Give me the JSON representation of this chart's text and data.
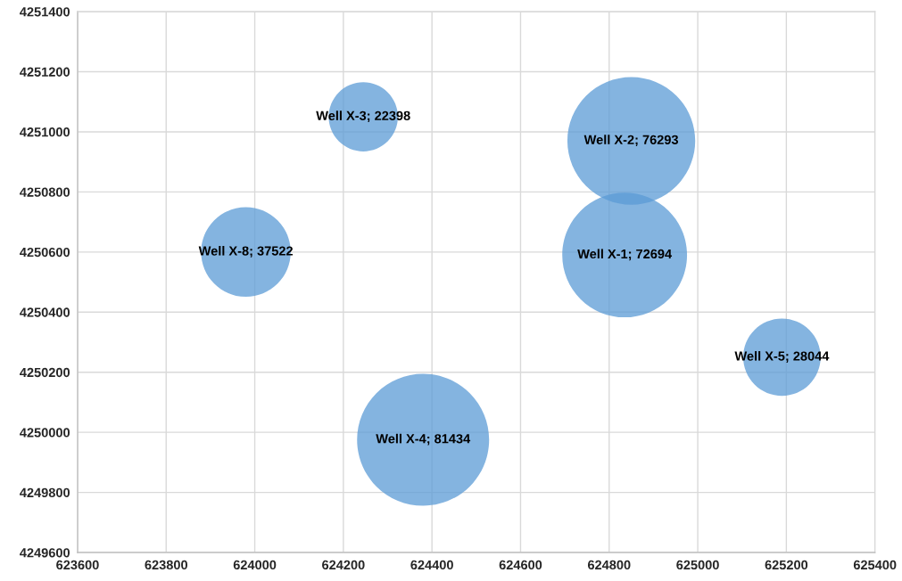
{
  "chart_data": {
    "type": "bubble",
    "x": [
      624835,
      624850,
      624245,
      624380,
      625190,
      623980
    ],
    "values": [
      4250590,
      4250970,
      4251050,
      4249975,
      4250250,
      4250600
    ],
    "sizes": [
      0.893,
      0.937,
      0.275,
      1,
      0.344,
      0.461
    ],
    "value_labels": [
      "Well X-1; 72694",
      "Well X-2; 76293",
      "Well X-3; 22398",
      "Well X-4; 81434",
      "Well X-5; 28044",
      "Well X-8; 37522"
    ],
    "color": "#5b9bd5",
    "xlim": [
      623600,
      625400
    ],
    "xticks": [
      623600,
      623800,
      624000,
      624200,
      624400,
      624600,
      624800,
      625000,
      625200,
      625400
    ],
    "ylim": [
      4249600,
      4251400
    ],
    "yticks": [
      4249600,
      4249800,
      4250000,
      4250200,
      4250400,
      4250600,
      4250800,
      4251000,
      4251200,
      4251400
    ],
    "grid": true
  }
}
